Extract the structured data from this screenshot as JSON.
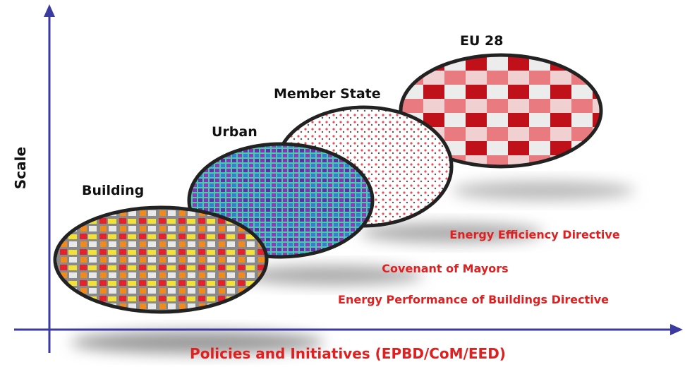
{
  "axes": {
    "y_label": "Scale",
    "x_label": "Policies and Initiatives (EPBD/CoM/EED)"
  },
  "levels": [
    {
      "label": "Building"
    },
    {
      "label": "Urban"
    },
    {
      "label": "Member State"
    },
    {
      "label": "EU 28"
    }
  ],
  "policies": [
    "Energy Efficiency Directive",
    "Covenant of Mayors",
    "Energy Performance of Buildings Directive"
  ]
}
